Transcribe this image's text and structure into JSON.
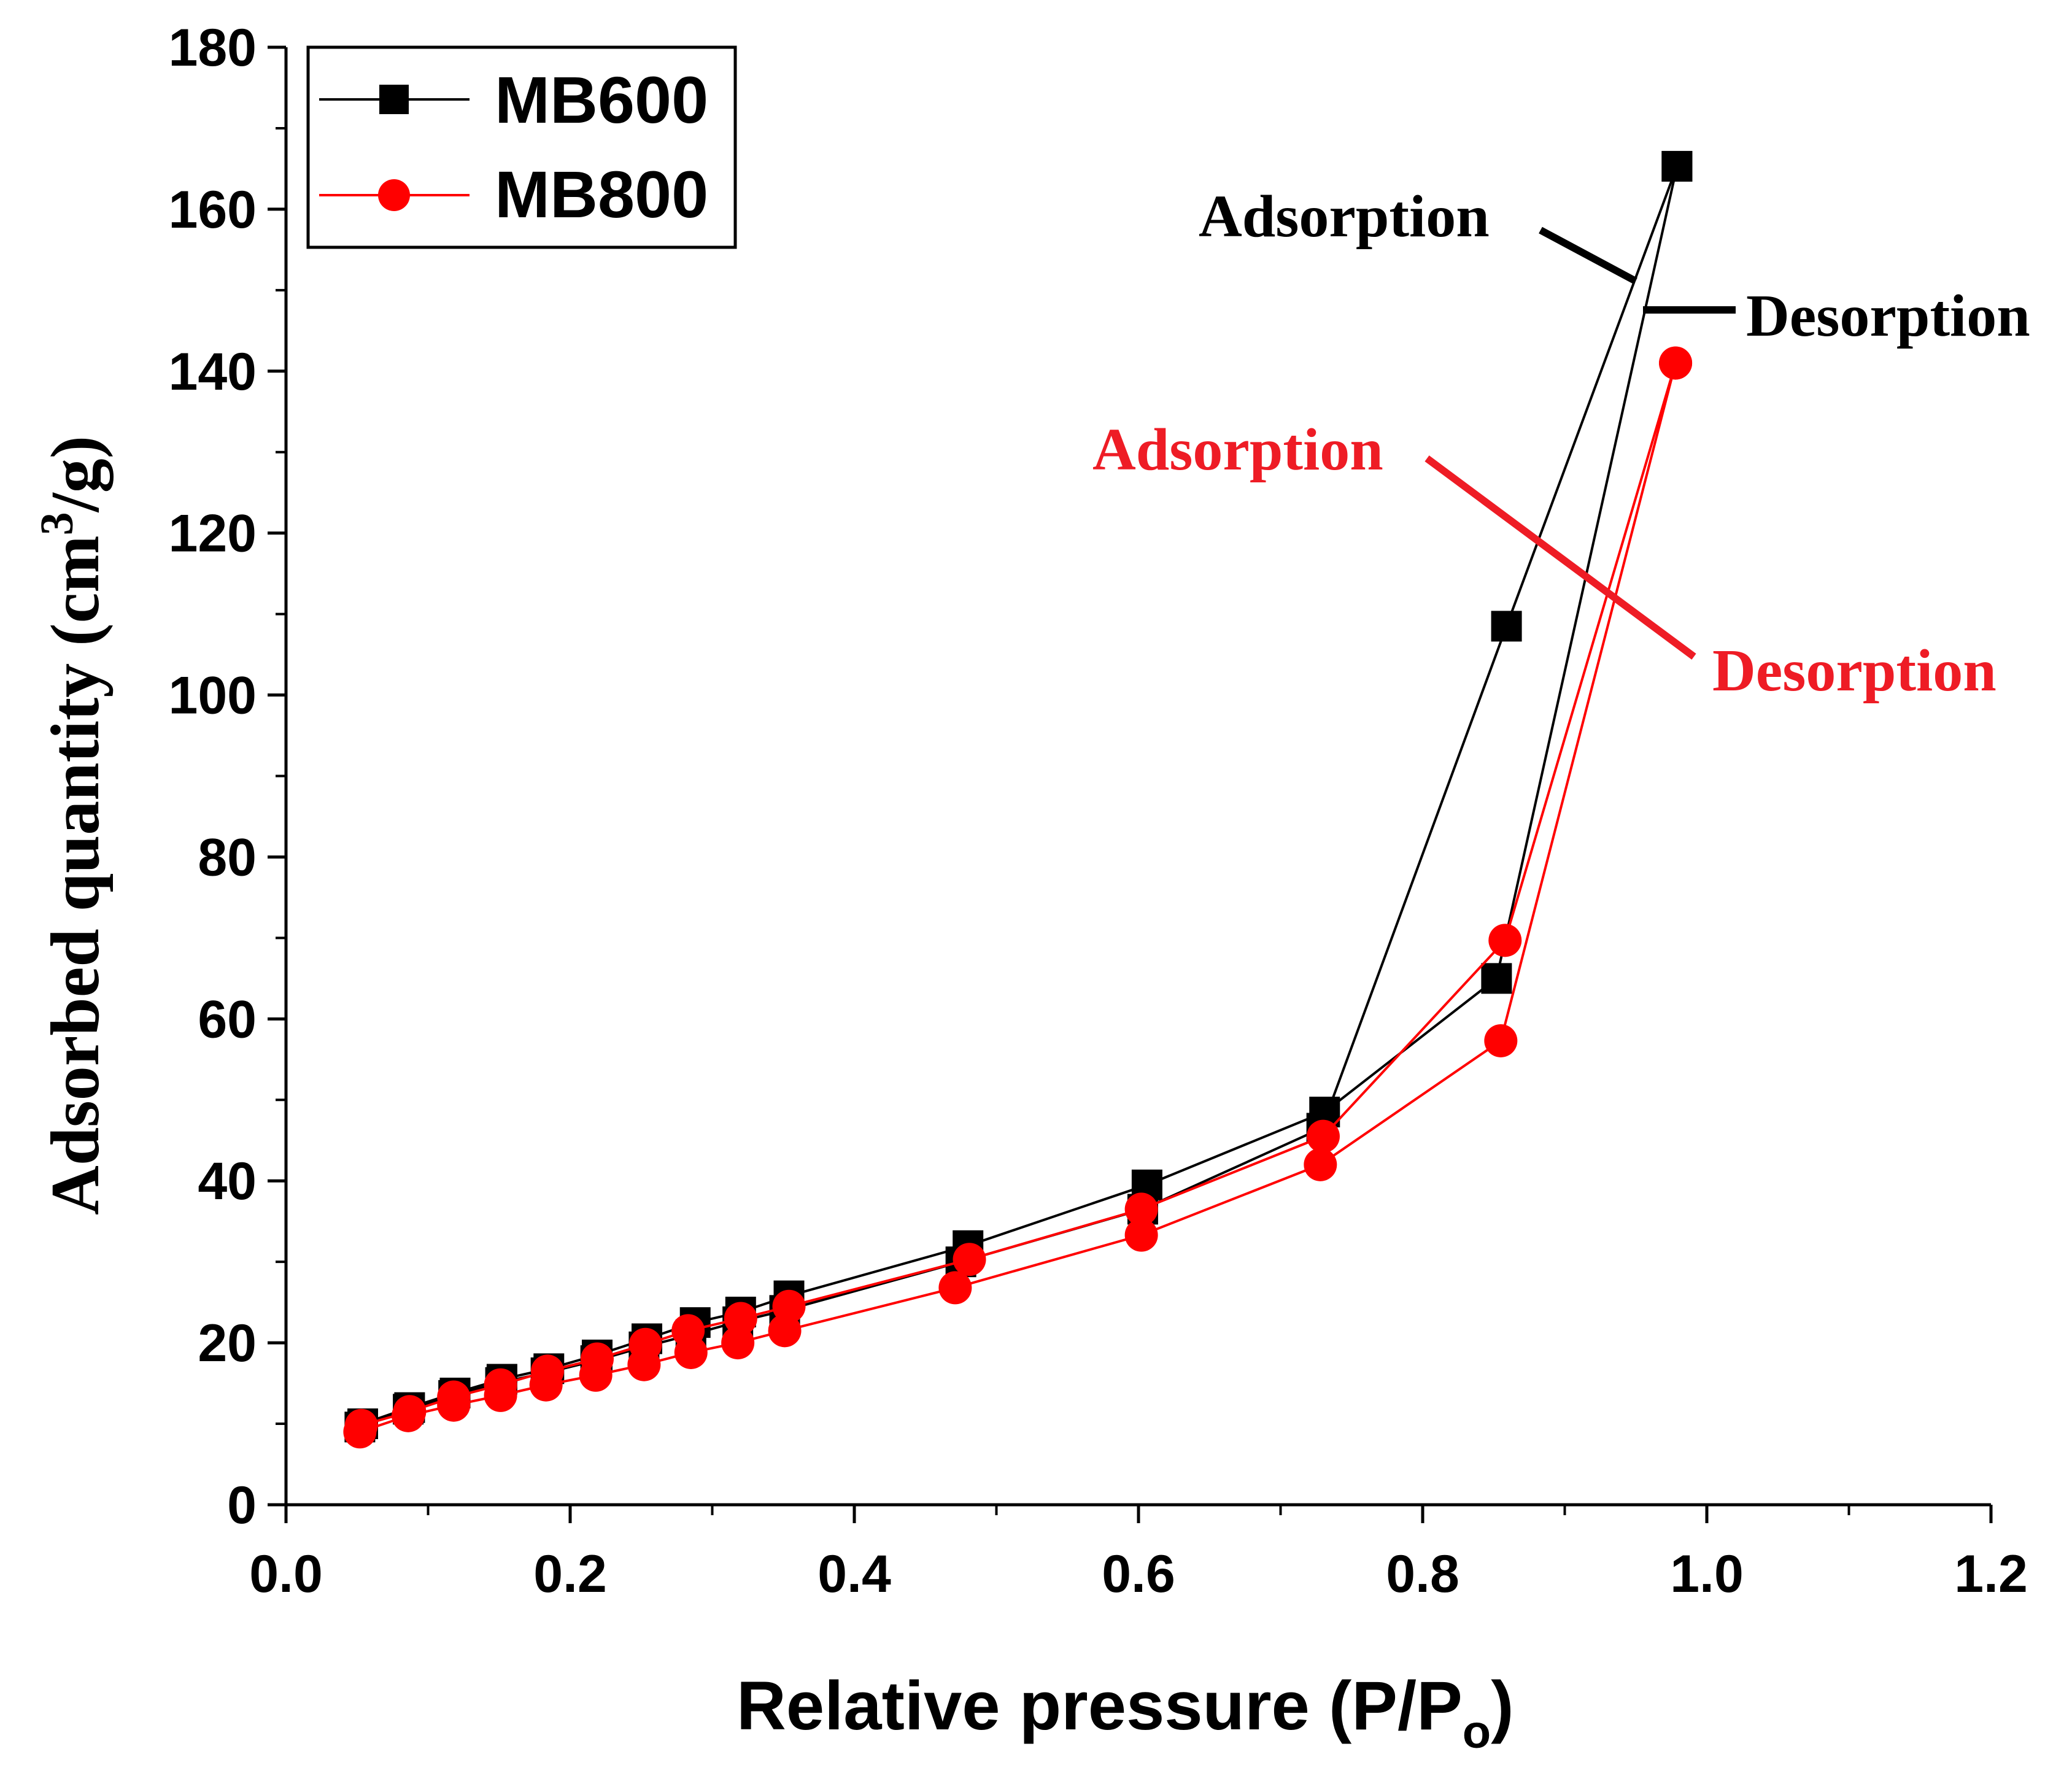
{
  "chart_data": {
    "type": "line",
    "title": "",
    "xlabel": "Relative pressure (P/P",
    "xlabel_sub": "o",
    "xlabel_close": ")",
    "ylabel": "Adsorbed quantity (cm",
    "ylabel_sup": "3",
    "ylabel_end": "/g)",
    "xlim": [
      0.0,
      1.2
    ],
    "ylim": [
      0,
      180
    ],
    "xticks": [
      "0.0",
      "0.2",
      "0.4",
      "0.6",
      "0.8",
      "1.0",
      "1.2"
    ],
    "yticks": [
      "0",
      "20",
      "40",
      "60",
      "80",
      "100",
      "120",
      "140",
      "160",
      "180"
    ],
    "xtick_values": [
      0.0,
      0.2,
      0.4,
      0.6,
      0.8,
      1.0,
      1.2
    ],
    "ytick_values": [
      0,
      20,
      40,
      60,
      80,
      100,
      120,
      140,
      160,
      180
    ],
    "legend_position": "top-left",
    "series": [
      {
        "name": "MB600",
        "color": "#000000",
        "marker": "square",
        "adsorption": {
          "x": [
            0.052,
            0.086,
            0.118,
            0.151,
            0.183,
            0.218,
            0.252,
            0.285,
            0.318,
            0.351,
            0.475,
            0.603,
            0.729,
            0.859,
            0.979
          ],
          "y": [
            9.6,
            11.8,
            13.5,
            15.1,
            16.3,
            17.8,
            19.5,
            21.0,
            22.6,
            24.0,
            30.0,
            36.5,
            46.5,
            108.5,
            165.3
          ]
        },
        "desorption": {
          "x": [
            0.979,
            0.852,
            0.731,
            0.606,
            0.48,
            0.354,
            0.32,
            0.288,
            0.254,
            0.219,
            0.185,
            0.152,
            0.119,
            0.087,
            0.054
          ],
          "y": [
            165.3,
            65.0,
            48.5,
            39.5,
            32.0,
            25.8,
            23.8,
            22.5,
            20.5,
            18.5,
            16.8,
            15.5,
            13.8,
            12.0,
            10.0
          ]
        }
      },
      {
        "name": "MB800",
        "color": "#ff0000",
        "marker": "circle",
        "adsorption": {
          "x": [
            0.052,
            0.086,
            0.118,
            0.151,
            0.183,
            0.218,
            0.252,
            0.285,
            0.318,
            0.351,
            0.471,
            0.602,
            0.728,
            0.855,
            0.978
          ],
          "y": [
            9.0,
            11.0,
            12.3,
            13.5,
            14.8,
            16.0,
            17.3,
            18.8,
            20.0,
            21.5,
            26.8,
            33.3,
            42.0,
            57.3,
            141.0
          ]
        },
        "desorption": {
          "x": [
            0.978,
            0.858,
            0.73,
            0.602,
            0.481,
            0.354,
            0.32,
            0.283,
            0.253,
            0.219,
            0.184,
            0.151,
            0.118,
            0.087,
            0.053
          ],
          "y": [
            141.0,
            69.7,
            45.5,
            36.5,
            30.3,
            24.5,
            23.0,
            21.5,
            19.8,
            18.0,
            16.5,
            14.8,
            13.3,
            11.5,
            9.8
          ]
        }
      }
    ],
    "annotations": [
      {
        "text": "Adsorption",
        "color": "#000000",
        "target": [
          0.95,
          151
        ]
      },
      {
        "text": "Desorption",
        "color": "#000000",
        "target": [
          0.957,
          148
        ]
      },
      {
        "text": "Adsorption",
        "color": "#ee1c25",
        "target": [
          0.935,
          115
        ]
      },
      {
        "text": "Desorption",
        "color": "#ee1c25",
        "target": [
          0.935,
          115
        ]
      }
    ]
  }
}
